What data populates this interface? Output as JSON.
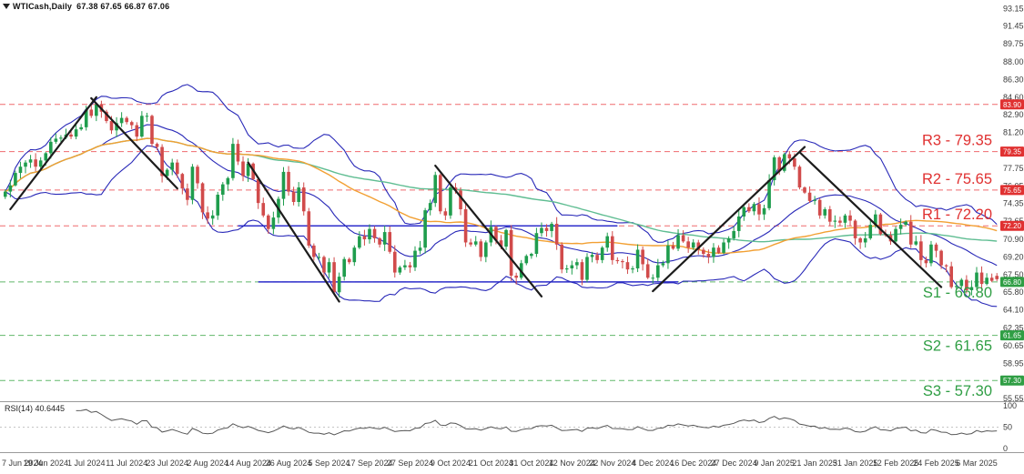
{
  "chart": {
    "symbol": "WTICash,Daily",
    "quote_text": "67.38 67.65 66.87 67.06"
  },
  "rsi": {
    "label": "RSI(14) 40.6445",
    "ticks": [
      "100",
      "50",
      "0"
    ]
  },
  "price_axis": {
    "ticks": [
      "93.15",
      "91.45",
      "89.75",
      "88.00",
      "86.30",
      "84.60",
      "82.90",
      "81.20",
      "79.50",
      "77.75",
      "76.05",
      "74.35",
      "72.65",
      "70.90",
      "69.20",
      "67.50",
      "65.80",
      "64.10",
      "62.35",
      "60.65",
      "58.95",
      "57.25",
      "55.55"
    ]
  },
  "time_axis": {
    "labels": [
      "7 Jun 2024",
      "19 Jun 2024",
      "1 Jul 2024",
      "11 Jul 2024",
      "23 Jul 2024",
      "2 Aug 2024",
      "14 Aug 2024",
      "26 Aug 2024",
      "5 Sep 2024",
      "17 Sep 2024",
      "27 Sep 2024",
      "9 Oct 2024",
      "21 Oct 2024",
      "31 Oct 2024",
      "12 Nov 2024",
      "22 Nov 2024",
      "4 Dec 2024",
      "16 Dec 2024",
      "27 Dec 2024",
      "9 Jan 2025",
      "21 Jan 2025",
      "31 Jan 2025",
      "12 Feb 2025",
      "24 Feb 2025",
      "6 Mar 2025"
    ]
  },
  "colors": {
    "up": "#1f9d4d",
    "down": "#d14b4b",
    "bollinger": "#2929b8",
    "ma_fast": "#f2a033",
    "ma_slow": "#5fbd92",
    "resistance": "#ef6a6e",
    "support": "#61b86a",
    "resistance_label": "#e03131",
    "support_label": "#2f9e44",
    "trendline": "#1c1c1c",
    "blue_line": "#2d2dcc",
    "axis_text": "#3a3a3a",
    "rsi_line": "#555555",
    "badge_text": "#ffffff",
    "separator": "#9a9a9a"
  },
  "chart_data": {
    "type": "candlestick",
    "title": "WTICash,Daily",
    "quote": {
      "open": 67.38,
      "high": 67.65,
      "low": 66.87,
      "close": 67.06
    },
    "bars_per_label": 8,
    "first_open": 75.0,
    "closes": [
      75.5,
      76.1,
      77.3,
      77.9,
      78.3,
      78.6,
      77.9,
      78.5,
      79.2,
      80.3,
      80.6,
      80.7,
      81.0,
      80.8,
      81.5,
      81.7,
      83.4,
      82.8,
      83.9,
      83.2,
      82.3,
      81.4,
      82.1,
      82.6,
      82.2,
      81.9,
      80.8,
      82.8,
      82.8,
      80.1,
      79.8,
      77.0,
      77.6,
      78.3,
      77.2,
      75.8,
      74.7,
      77.9,
      76.3,
      73.5,
      72.9,
      73.2,
      75.2,
      76.2,
      76.8,
      80.1,
      78.4,
      77.0,
      78.2,
      76.7,
      74.4,
      73.2,
      71.9,
      73.0,
      74.8,
      77.4,
      75.5,
      74.5,
      75.9,
      73.6,
      70.3,
      69.2,
      69.2,
      67.7,
      68.7,
      65.8,
      67.3,
      69.0,
      68.7,
      70.1,
      71.2,
      70.9,
      71.9,
      71.0,
      70.4,
      71.6,
      69.7,
      67.7,
      68.2,
      68.4,
      68.2,
      69.8,
      70.1,
      73.7,
      74.4,
      77.1,
      73.6,
      73.2,
      75.9,
      75.6,
      73.8,
      70.6,
      70.4,
      70.7,
      69.2,
      70.6,
      72.1,
      70.8,
      70.2,
      71.8,
      67.4,
      67.2,
      68.6,
      69.3,
      69.5,
      71.5,
      72.0,
      71.7,
      72.4,
      70.4,
      68.0,
      68.1,
      68.4,
      68.7,
      67.0,
      69.2,
      69.4,
      68.9,
      70.1,
      71.2,
      68.9,
      68.8,
      68.7,
      68.0,
      68.1,
      69.9,
      68.5,
      67.2,
      67.2,
      68.4,
      68.6,
      70.3,
      70.0,
      71.3,
      70.7,
      70.1,
      70.6,
      69.9,
      69.5,
      69.2,
      70.1,
      69.6,
      70.6,
      71.0,
      71.7,
      73.1,
      74.0,
      73.6,
      74.3,
      73.3,
      73.9,
      76.6,
      78.8,
      77.5,
      79.1,
      78.7,
      77.9,
      75.9,
      75.4,
      74.6,
      74.7,
      73.2,
      73.8,
      72.6,
      72.7,
      72.5,
      73.2,
      72.7,
      71.0,
      70.6,
      71.0,
      72.3,
      73.3,
      71.4,
      71.3,
      70.7,
      71.9,
      72.3,
      72.6,
      70.4,
      70.7,
      68.9,
      68.6,
      70.4,
      69.8,
      68.4,
      68.3,
      66.3,
      66.4,
      67.0,
      66.0,
      66.3,
      67.7,
      66.6,
      67.2,
      66.9,
      67.06
    ],
    "ylim": [
      55.3,
      93.7
    ],
    "price_tick_values": [
      93.15,
      91.45,
      89.75,
      88.0,
      86.3,
      84.6,
      82.9,
      81.2,
      79.5,
      77.75,
      76.05,
      74.35,
      72.65,
      70.9,
      69.2,
      67.5,
      65.8,
      64.1,
      62.35,
      60.65,
      58.95,
      57.25,
      55.55
    ],
    "levels": [
      {
        "name": "",
        "label": "",
        "value": 83.9,
        "kind": "resistance"
      },
      {
        "name": "R3",
        "label": "R3 - 79.35",
        "value": 79.35,
        "kind": "resistance"
      },
      {
        "name": "R2",
        "label": "R2 - 75.65",
        "value": 75.65,
        "kind": "resistance"
      },
      {
        "name": "R1",
        "label": "R1 - 72.20",
        "value": 72.2,
        "kind": "resistance"
      },
      {
        "name": "S1",
        "label": "S1 - 66.80",
        "value": 66.8,
        "kind": "support"
      },
      {
        "name": "S2",
        "label": "S2 - 61.65",
        "value": 61.65,
        "kind": "support"
      },
      {
        "name": "S3",
        "label": "S3 - 57.30",
        "value": 57.3,
        "kind": "support"
      }
    ],
    "trendlines": [
      [
        1,
        73.8,
        18,
        84.6
      ],
      [
        17,
        84.5,
        34,
        75.8
      ],
      [
        48,
        78.3,
        66,
        64.9
      ],
      [
        85,
        78.0,
        106,
        65.4
      ],
      [
        128,
        65.9,
        158,
        79.8
      ],
      [
        157,
        79.3,
        185,
        66.3
      ]
    ],
    "horizontal_segments": [
      [
        46,
        72.2,
        121
      ],
      [
        50,
        66.8,
        133
      ]
    ],
    "indicators": {
      "bollinger": {
        "period": 20,
        "deviation": 2
      },
      "ma_fast_period": 50,
      "ma_slow_period": 100,
      "rsi_period": 14,
      "rsi_last_value": 40.6445
    },
    "rsi_ylim": [
      0,
      100
    ],
    "rsi_ticks": [
      100,
      50,
      0
    ]
  }
}
